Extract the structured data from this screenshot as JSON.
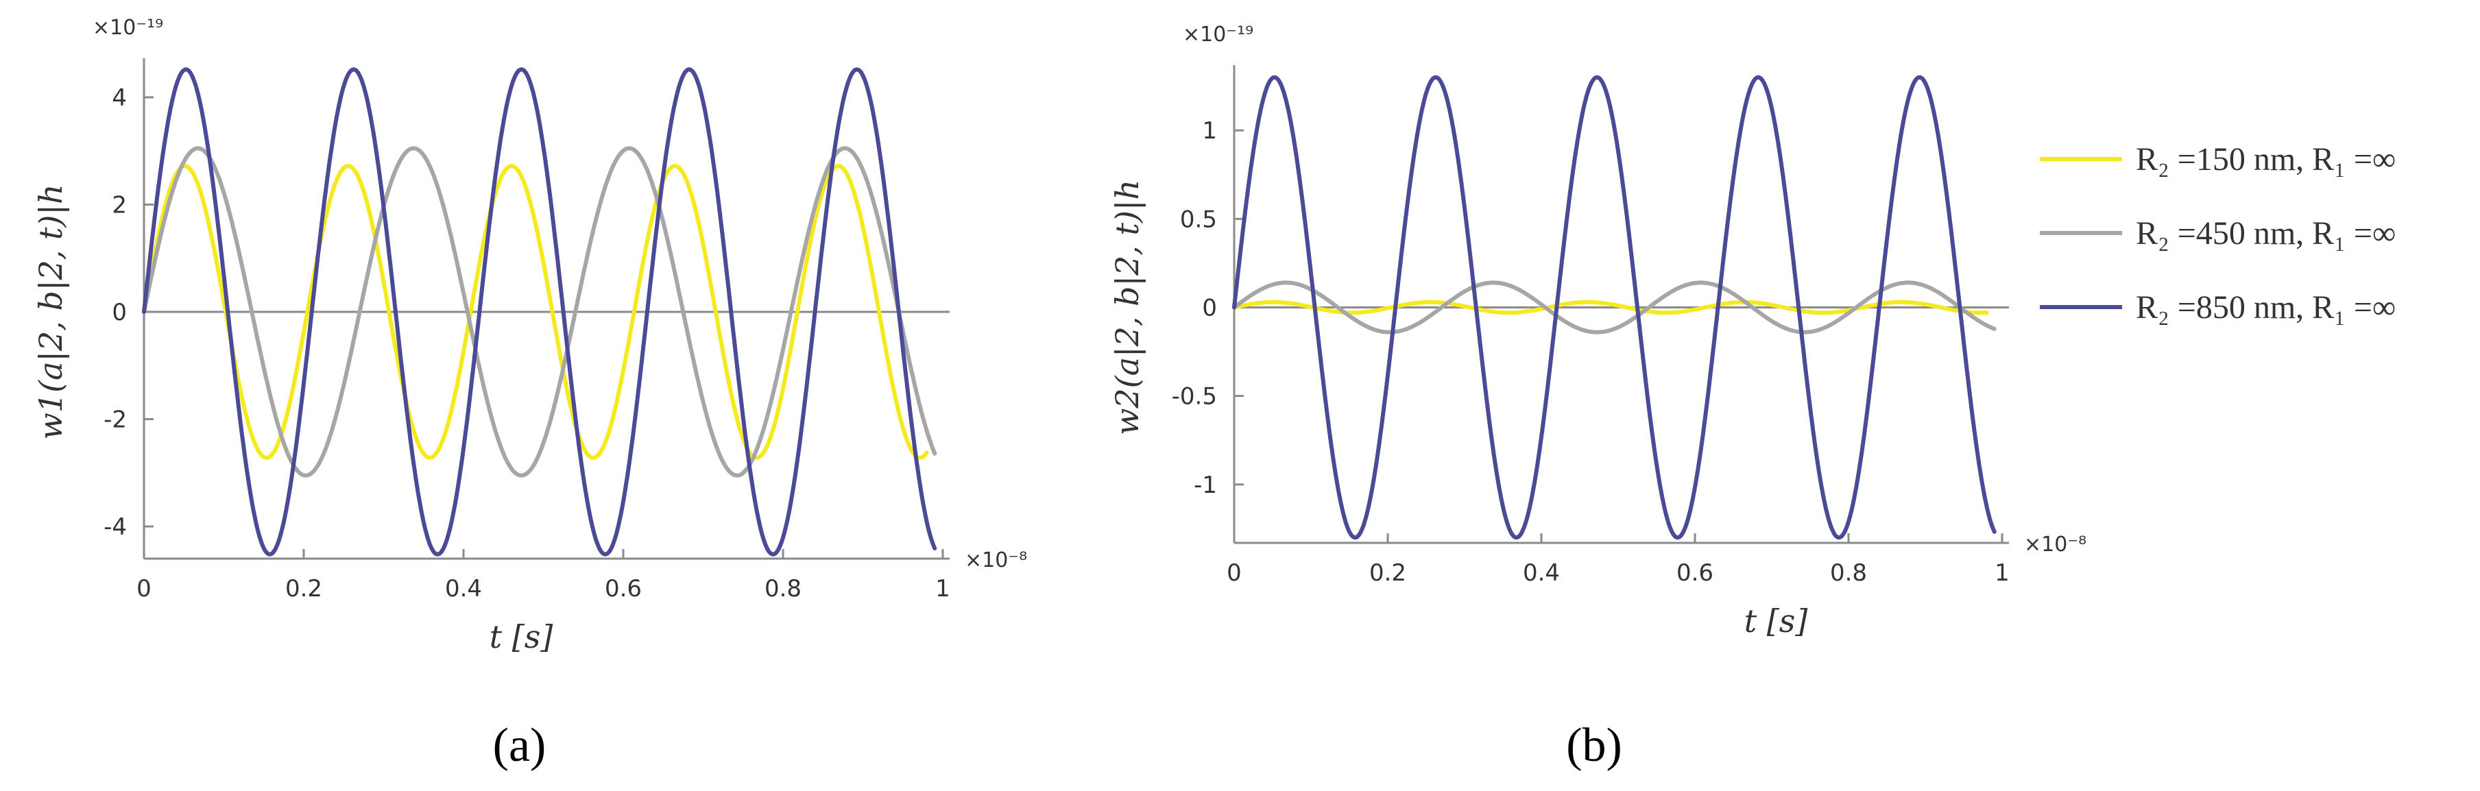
{
  "chart_data": [
    {
      "type": "line",
      "panel_label": "(a)",
      "xlabel": "t [s]",
      "ylabel": "w1(a|2, b|2, t)|h",
      "x_exponent_label": "×10⁻⁸",
      "y_exponent_label": "×10⁻¹⁹",
      "xlim": [
        0,
        1
      ],
      "ylim": [
        -4.6,
        4.6
      ],
      "x_ticks": [
        "0",
        "0.2",
        "0.4",
        "0.6",
        "0.8",
        "1"
      ],
      "y_ticks": [
        "-4",
        "-2",
        "0",
        "2",
        "4"
      ],
      "grid": false,
      "series": [
        {
          "name": "R₂ =150 nm, R₁ =∞",
          "color": "#f5ea1e",
          "amplitude": 2.72,
          "period": 0.2045,
          "x": [
            0,
            0.98
          ],
          "y_end": -2.45
        },
        {
          "name": "R₂ =450 nm, R₁ =∞",
          "color": "#a6a6a6",
          "amplitude": 3.05,
          "period": 0.27,
          "x": [
            0,
            0.99
          ],
          "y_end": -2.75
        },
        {
          "name": "R₂ =850 nm, R₁ =∞",
          "color": "#4a4a96",
          "amplitude": 4.52,
          "period": 0.21,
          "x": [
            0,
            0.99
          ],
          "y_end": -4.35
        }
      ]
    },
    {
      "type": "line",
      "panel_label": "(b)",
      "xlabel": "t [s]",
      "ylabel": "w2(a|2, b|2, t)|h",
      "x_exponent_label": "×10⁻⁸",
      "y_exponent_label": "×10⁻¹⁹",
      "xlim": [
        0,
        1
      ],
      "ylim": [
        -1.33,
        1.33
      ],
      "x_ticks": [
        "0",
        "0.2",
        "0.4",
        "0.6",
        "0.8",
        "1"
      ],
      "y_ticks": [
        "-1",
        "-0.5",
        "0",
        "0.5",
        "1"
      ],
      "grid": false,
      "series": [
        {
          "name": "R₂ =150 nm, R₁ =∞",
          "color": "#f5ea1e",
          "amplitude": 0.03,
          "period": 0.2045,
          "x": [
            0,
            0.98
          ]
        },
        {
          "name": "R₂ =450 nm, R₁ =∞",
          "color": "#a6a6a6",
          "amplitude": 0.14,
          "period": 0.27,
          "x": [
            0,
            0.99
          ]
        },
        {
          "name": "R₂ =850 nm, R₁ =∞",
          "color": "#4a4a96",
          "amplitude": 1.3,
          "period": 0.21,
          "x": [
            0,
            0.99
          ]
        }
      ]
    }
  ],
  "legend": {
    "placement": "right",
    "items": [
      {
        "label": "R₂ =150 nm, R₁ =∞",
        "color": "#f5ea1e"
      },
      {
        "label": "R₂ =450 nm, R₁ =∞",
        "color": "#a6a6a6"
      },
      {
        "label": "R₂ =850 nm, R₁ =∞",
        "color": "#4a4a96"
      }
    ]
  }
}
